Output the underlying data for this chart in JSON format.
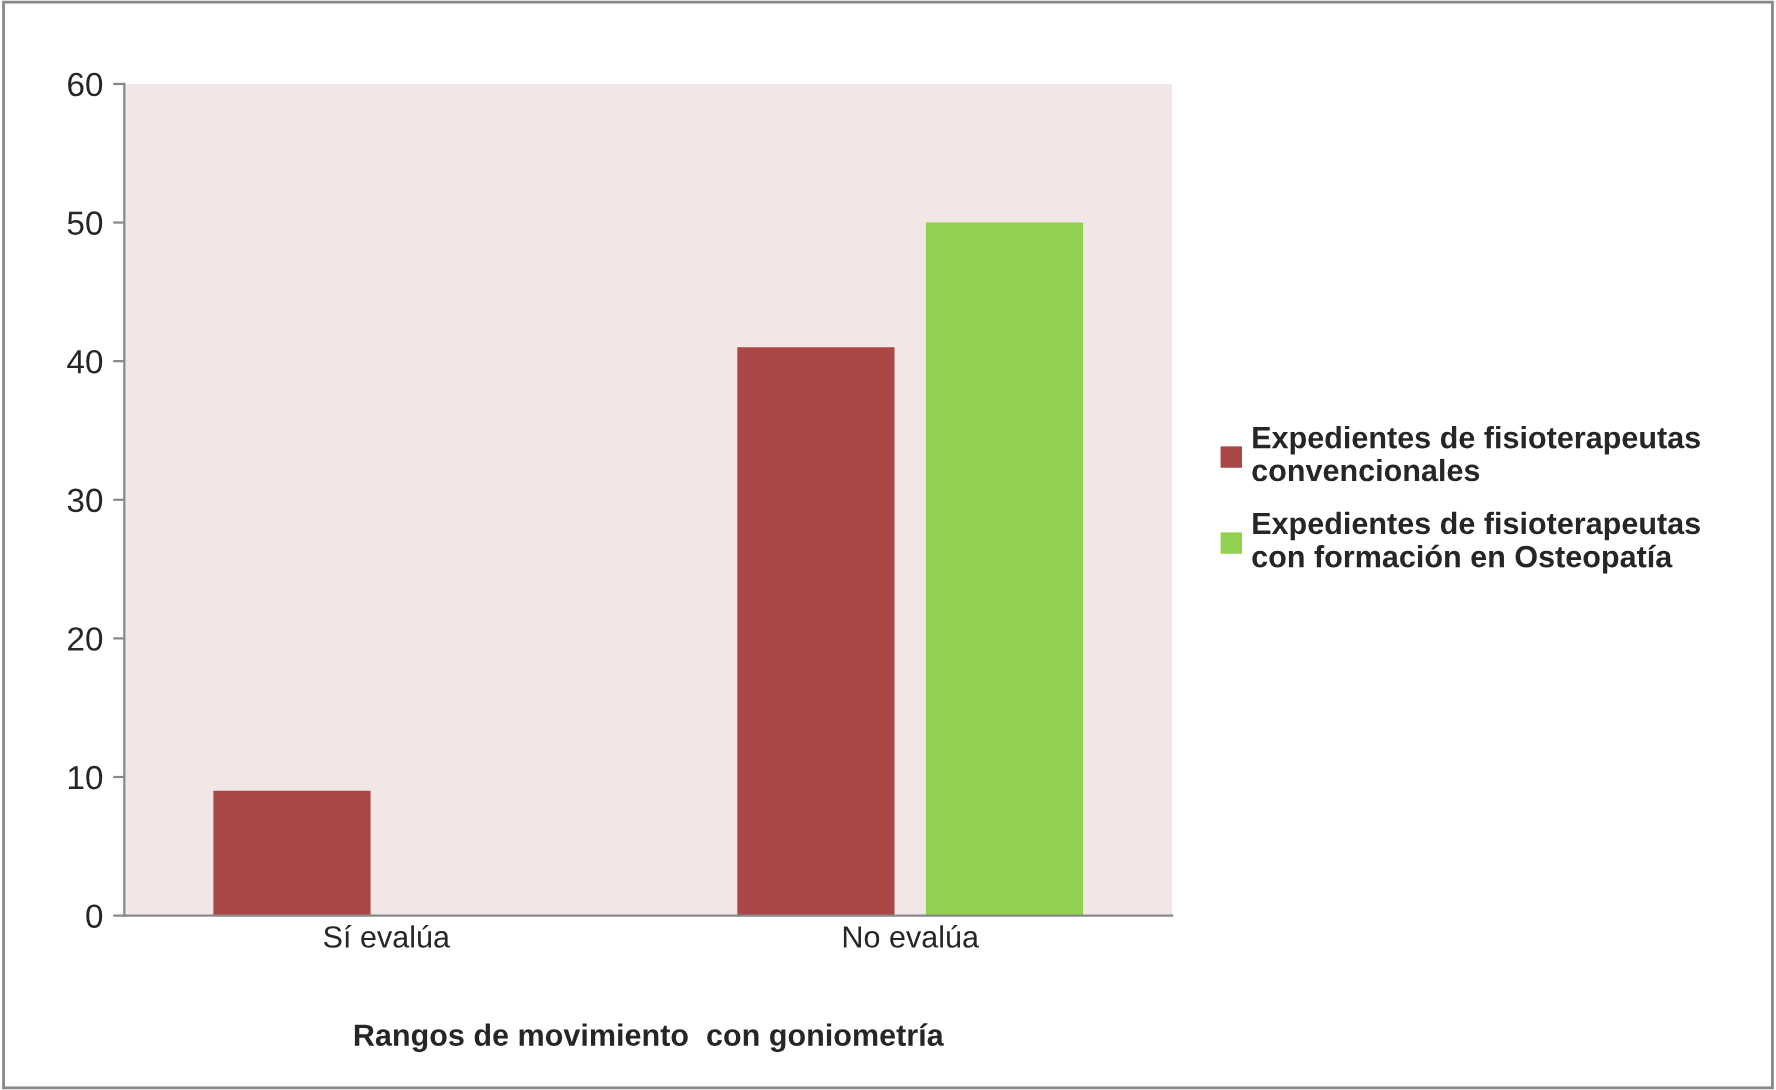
{
  "chart_data": {
    "type": "bar",
    "xlabel": "Rangos de movimiento  con goniometría",
    "categories": [
      "Sí evalúa",
      "No evalúa"
    ],
    "series": [
      {
        "name": "Expedientes de fisioterapeutas\nconvencionales",
        "color": "#a94646",
        "values": [
          9,
          41
        ]
      },
      {
        "name": "Expedientes de fisioterapeutas\ncon formación en Osteopatía",
        "color": "#92d050",
        "values": [
          null,
          50
        ]
      }
    ],
    "ylim": [
      0,
      60
    ],
    "yticks": [
      0,
      10,
      20,
      30,
      40,
      50,
      60
    ],
    "grid": false,
    "legend": "right"
  }
}
